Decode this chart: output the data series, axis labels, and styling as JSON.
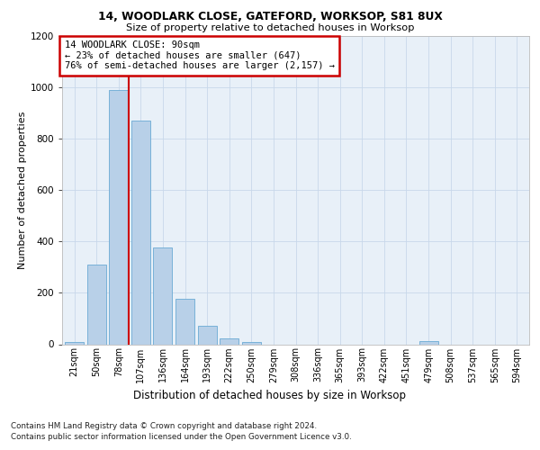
{
  "title1": "14, WOODLARK CLOSE, GATEFORD, WORKSOP, S81 8UX",
  "title2": "Size of property relative to detached houses in Worksop",
  "xlabel": "Distribution of detached houses by size in Worksop",
  "ylabel": "Number of detached properties",
  "footer1": "Contains HM Land Registry data © Crown copyright and database right 2024.",
  "footer2": "Contains public sector information licensed under the Open Government Licence v3.0.",
  "annotation_line1": "14 WOODLARK CLOSE: 90sqm",
  "annotation_line2": "← 23% of detached houses are smaller (647)",
  "annotation_line3": "76% of semi-detached houses are larger (2,157) →",
  "bar_color": "#b8d0e8",
  "bar_edge_color": "#6aaad4",
  "grid_color": "#c8d8ea",
  "bg_color": "#e8f0f8",
  "vline_color": "#cc0000",
  "categories": [
    "21sqm",
    "50sqm",
    "78sqm",
    "107sqm",
    "136sqm",
    "164sqm",
    "193sqm",
    "222sqm",
    "250sqm",
    "279sqm",
    "308sqm",
    "336sqm",
    "365sqm",
    "393sqm",
    "422sqm",
    "451sqm",
    "479sqm",
    "508sqm",
    "537sqm",
    "565sqm",
    "594sqm"
  ],
  "values": [
    10,
    310,
    990,
    870,
    375,
    178,
    72,
    22,
    8,
    0,
    0,
    0,
    0,
    0,
    0,
    0,
    12,
    0,
    0,
    0,
    0
  ],
  "ylim": [
    0,
    1200
  ],
  "yticks": [
    0,
    200,
    400,
    600,
    800,
    1000,
    1200
  ],
  "vline_x": 2.45,
  "fig_width": 6.0,
  "fig_height": 5.0,
  "dpi": 100
}
